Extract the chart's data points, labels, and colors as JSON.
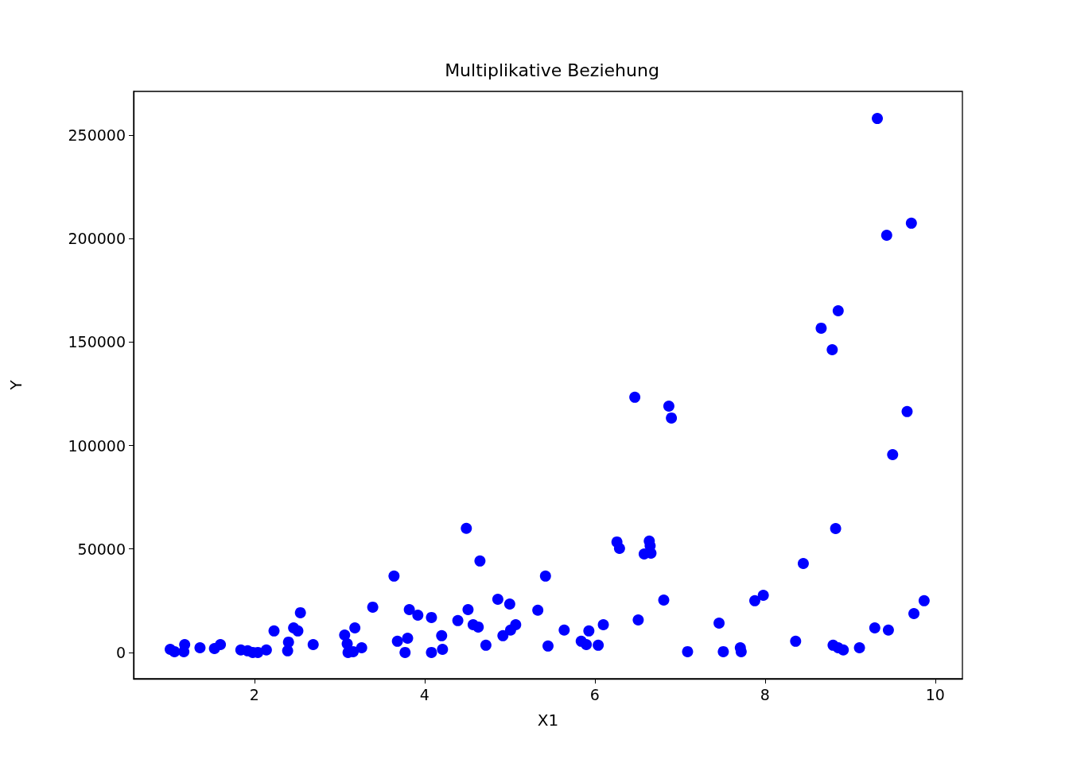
{
  "chart_data": {
    "type": "scatter",
    "title": "Multiplikative Beziehung",
    "xlabel": "X1",
    "ylabel": "Y",
    "xlim": [
      0.58,
      10.32
    ],
    "ylim": [
      -12700,
      271100
    ],
    "xticks": [
      2,
      4,
      6,
      8,
      10
    ],
    "yticks": [
      0,
      50000,
      100000,
      150000,
      200000,
      250000
    ],
    "grid": false,
    "marker": "circle",
    "series": [
      {
        "color": "#0000ff",
        "x": [
          1.01,
          1.06,
          1.18,
          1.17,
          1.36,
          1.53,
          1.6,
          1.84,
          1.92,
          1.98,
          2.04,
          2.14,
          2.23,
          2.4,
          2.39,
          2.46,
          2.51,
          2.54,
          2.69,
          3.06,
          3.09,
          3.1,
          3.16,
          3.18,
          3.26,
          3.39,
          3.64,
          3.68,
          3.77,
          3.8,
          3.82,
          3.92,
          4.08,
          4.08,
          4.2,
          4.21,
          4.39,
          4.49,
          4.51,
          4.57,
          4.63,
          4.65,
          4.72,
          4.86,
          4.92,
          5.0,
          5.01,
          5.07,
          5.33,
          5.42,
          5.45,
          5.64,
          5.84,
          5.9,
          5.93,
          6.04,
          6.1,
          6.26,
          6.29,
          6.47,
          6.51,
          6.58,
          6.64,
          6.65,
          6.66,
          6.81,
          6.87,
          6.9,
          7.09,
          7.46,
          7.51,
          7.71,
          7.72,
          7.88,
          7.98,
          8.36,
          8.45,
          8.66,
          8.79,
          8.8,
          8.83,
          8.86,
          8.86,
          8.92,
          9.11,
          9.29,
          9.32,
          9.43,
          9.45,
          9.5,
          9.67,
          9.72,
          9.75,
          9.87
        ],
        "values": [
          1500,
          400,
          3800,
          400,
          2300,
          1900,
          3800,
          1200,
          800,
          0,
          0,
          1200,
          10400,
          5000,
          800,
          11900,
          10400,
          19200,
          3800,
          8400,
          4200,
          0,
          400,
          11900,
          2300,
          21900,
          36900,
          5400,
          0,
          6900,
          20700,
          18000,
          0,
          16900,
          8100,
          1500,
          15400,
          60000,
          20700,
          13400,
          12300,
          44200,
          3500,
          25700,
          8100,
          23400,
          10800,
          13400,
          20400,
          36900,
          3100,
          10800,
          5400,
          3800,
          10400,
          3500,
          13400,
          53400,
          50300,
          123300,
          15700,
          47600,
          53800,
          51500,
          48000,
          25300,
          119000,
          113300,
          400,
          14200,
          400,
          2300,
          400,
          25000,
          27600,
          5400,
          43000,
          156700,
          146300,
          3500,
          59900,
          165100,
          2300,
          1200,
          2300,
          11900,
          258000,
          201600,
          10800,
          95600,
          116400,
          207400,
          18800,
          25000
        ]
      }
    ]
  }
}
